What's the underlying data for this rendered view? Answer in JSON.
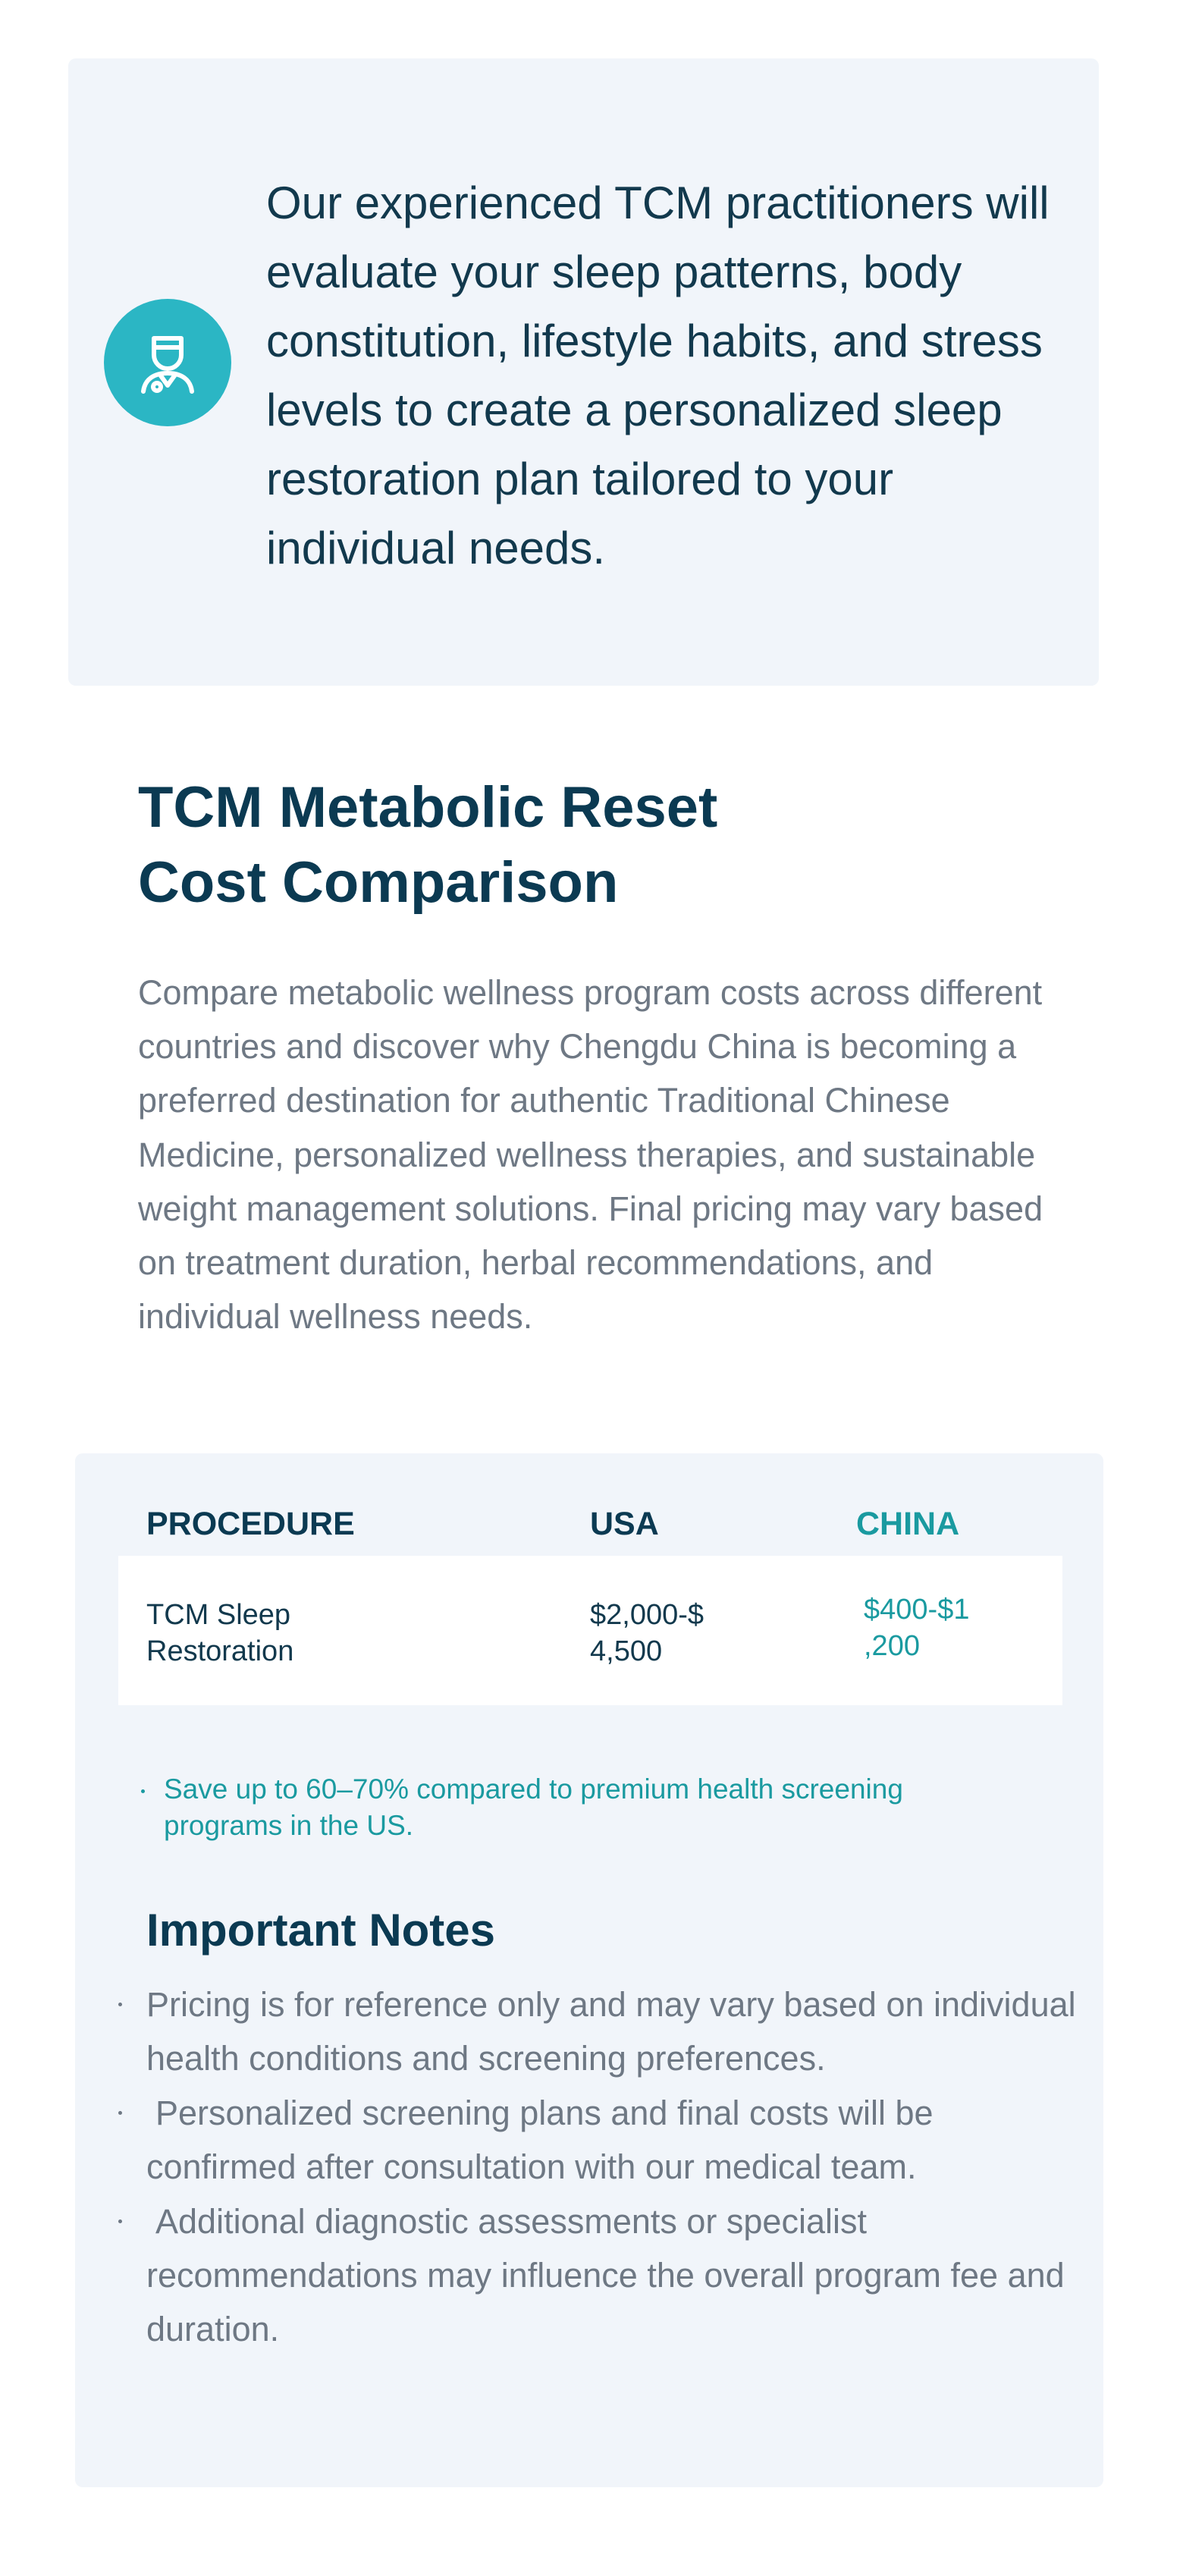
{
  "intro": {
    "text": "Our experienced TCM practitioners will evaluate your sleep patterns, body constitution, lifestyle habits, and stress levels to create a personalized sleep restoration plan tailored to your individual needs."
  },
  "section": {
    "title": "TCM Metabolic Reset Cost Comparison",
    "description": "Compare metabolic wellness program costs across different countries and discover why Chengdu China is becoming a preferred destination for authentic Traditional Chinese Medicine, personalized wellness therapies, and sustainable weight management solutions. Final pricing may vary based on treatment duration, herbal recommendations, and individual wellness needs."
  },
  "table": {
    "headers": [
      "PROCEDURE",
      "USA",
      "CHINA"
    ],
    "rows": [
      [
        "TCM Sleep Restoration",
        "$2,000-$4,500",
        "$400-$1,200"
      ]
    ],
    "savings_note": "Save up to 60–70% compared to premium health screening programs in the US."
  },
  "notes": {
    "title": "Important Notes",
    "items": [
      "Pricing is for reference only and may vary based on individual health conditions and screening preferences.",
      "Personalized screening plans and final costs will be confirmed after consultation with our medical team.",
      "Additional diagnostic assessments or specialist recommendations may influence the overall program fee and duration."
    ]
  }
}
